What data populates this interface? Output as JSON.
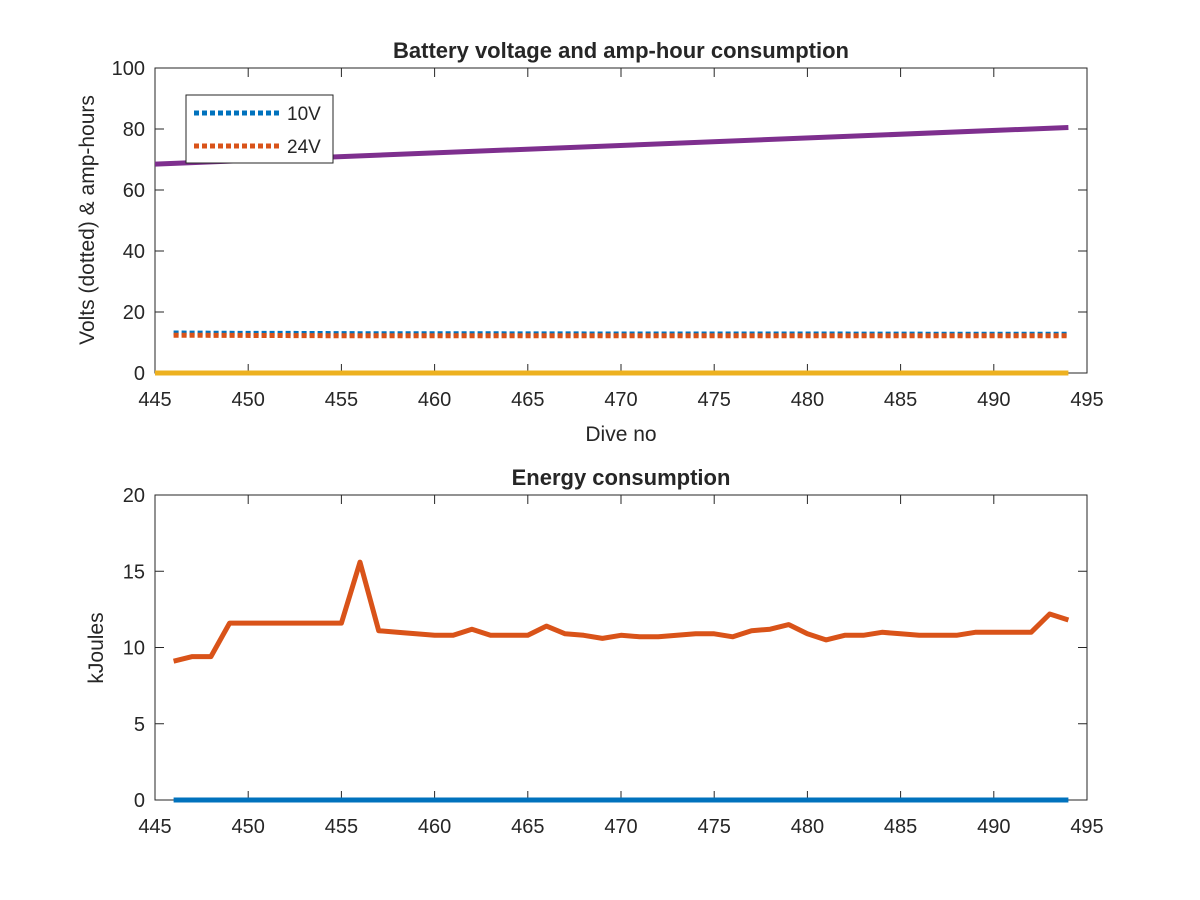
{
  "chart_data": [
    {
      "type": "line",
      "title": "Battery voltage and amp-hour consumption",
      "xlabel": "Dive no",
      "ylabel": "Volts (dotted) & amp-hours",
      "xlim": [
        445,
        495
      ],
      "ylim": [
        0,
        100
      ],
      "xticks": [
        "445",
        "450",
        "455",
        "460",
        "465",
        "470",
        "475",
        "480",
        "485",
        "490",
        "495"
      ],
      "yticks": [
        "0",
        "20",
        "40",
        "60",
        "80",
        "100"
      ],
      "grid": false,
      "legend_position": "top-left",
      "series": [
        {
          "name": "10V",
          "style": "dotted",
          "color": "#0072BD",
          "x": [
            446,
            450,
            452,
            456,
            460,
            470,
            480,
            490,
            494
          ],
          "values": [
            13.1,
            13.0,
            13.0,
            12.9,
            12.9,
            12.8,
            12.8,
            12.7,
            12.7
          ]
        },
        {
          "name": "24V",
          "style": "dotted",
          "color": "#D95319",
          "x": [
            446,
            456,
            470,
            494
          ],
          "values": [
            12.4,
            12.2,
            12.2,
            12.2
          ]
        },
        {
          "style": "solid",
          "color": "#7E2F8E",
          "x": [
            445,
            494
          ],
          "values": [
            68.5,
            80.5
          ]
        },
        {
          "style": "solid",
          "color": "#EDB120",
          "x": [
            445,
            494
          ],
          "values": [
            0,
            0
          ]
        }
      ]
    },
    {
      "type": "line",
      "title": "Energy consumption",
      "xlabel": "",
      "ylabel": "kJoules",
      "xlim": [
        445,
        495
      ],
      "ylim": [
        0,
        20
      ],
      "xticks": [
        "445",
        "450",
        "455",
        "460",
        "465",
        "470",
        "475",
        "480",
        "485",
        "490",
        "495"
      ],
      "yticks": [
        "0",
        "5",
        "10",
        "15",
        "20"
      ],
      "grid": false,
      "series": [
        {
          "style": "solid",
          "color": "#D95319",
          "x": [
            446,
            447,
            448,
            449,
            450,
            451,
            452,
            453,
            454,
            455,
            456,
            457,
            458,
            459,
            460,
            461,
            462,
            463,
            464,
            465,
            466,
            467,
            468,
            469,
            470,
            471,
            472,
            473,
            474,
            475,
            476,
            477,
            478,
            479,
            480,
            481,
            482,
            483,
            484,
            485,
            486,
            487,
            488,
            489,
            490,
            491,
            492,
            493,
            494
          ],
          "values": [
            9.1,
            9.4,
            9.4,
            11.6,
            11.6,
            11.6,
            11.6,
            11.6,
            11.6,
            11.6,
            15.6,
            11.1,
            11.0,
            10.9,
            10.8,
            10.8,
            11.2,
            10.8,
            10.8,
            10.8,
            11.4,
            10.9,
            10.8,
            10.6,
            10.8,
            10.7,
            10.7,
            10.8,
            10.9,
            10.9,
            10.7,
            11.1,
            11.2,
            11.5,
            10.9,
            10.5,
            10.8,
            10.8,
            11.0,
            10.9,
            10.8,
            10.8,
            10.8,
            11.0,
            11.0,
            11.0,
            11.0,
            12.2,
            11.8
          ]
        },
        {
          "style": "solid",
          "color": "#0072BD",
          "x": [
            446,
            494
          ],
          "values": [
            0,
            0
          ]
        }
      ]
    }
  ]
}
